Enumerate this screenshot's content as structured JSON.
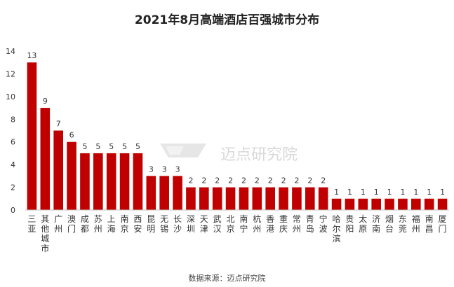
{
  "title": "2021年8月高端酒店百强城市分布",
  "source": "数据来源：迈点研究院",
  "watermark": "迈点研究院",
  "colors": {
    "bar": "#c00000",
    "axis": "#bfbfbf",
    "text": "#333333"
  },
  "chart_data": {
    "type": "bar",
    "title": "2021年8月高端酒店百强城市分布",
    "xlabel": "",
    "ylabel": "",
    "ylim": [
      0,
      14
    ],
    "yticks": [
      0,
      2,
      4,
      6,
      8,
      10,
      12,
      14
    ],
    "grid": false,
    "legend": "none",
    "categories": [
      "三亚",
      "其他城市",
      "广州",
      "澳门",
      "成都",
      "苏州",
      "上海",
      "南京",
      "西安",
      "昆明",
      "无锡",
      "长沙",
      "深圳",
      "天津",
      "武汉",
      "北京",
      "南宁",
      "杭州",
      "香港",
      "重庆",
      "常州",
      "青岛",
      "宁波",
      "哈尔滨",
      "贵阳",
      "太原",
      "济南",
      "烟台",
      "东莞",
      "福州",
      "南昌",
      "厦门"
    ],
    "values": [
      13,
      9,
      7,
      6,
      5,
      5,
      5,
      5,
      5,
      3,
      3,
      3,
      2,
      2,
      2,
      2,
      2,
      2,
      2,
      2,
      2,
      2,
      2,
      1,
      1,
      1,
      1,
      1,
      1,
      1,
      1,
      1
    ]
  }
}
